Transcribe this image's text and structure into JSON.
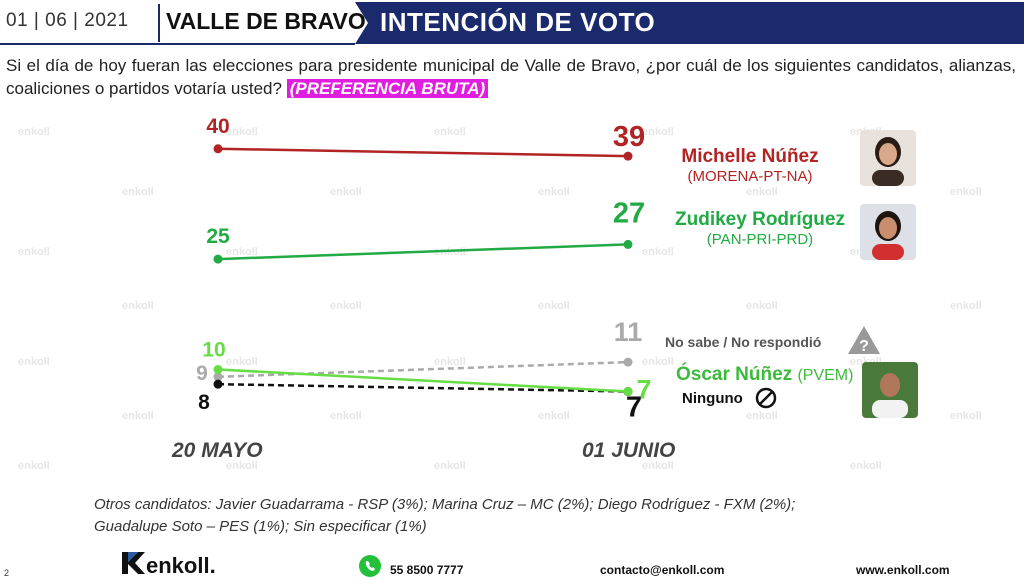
{
  "header": {
    "date": "01 | 06 | 2021",
    "place": "VALLE DE BRAVO",
    "title": "INTENCIÓN DE VOTO",
    "bar_color": "#1a2a6c"
  },
  "question": {
    "text": "Si el día de hoy fueran las elecciones para presidente municipal de Valle de Bravo, ¿por cuál de los siguientes candidatos, alianzas, coaliciones o partidos votaría usted?",
    "tag": "(PREFERENCIA BRUTA)"
  },
  "chart_data": {
    "type": "line",
    "categories": [
      "20 MAYO",
      "01 JUNIO"
    ],
    "series": [
      {
        "name": "Michelle Núñez",
        "party": "(MORENA-PT-NA)",
        "values": [
          40,
          39
        ],
        "color": "#b22424",
        "dashed": false
      },
      {
        "name": "Zudikey Rodríguez",
        "party": "(PAN-PRI-PRD)",
        "values": [
          25,
          27
        ],
        "color": "#22aa44",
        "dashed": false
      },
      {
        "name": "Óscar Núñez",
        "party": "(PVEM)",
        "values": [
          10,
          7
        ],
        "color": "#66dd44",
        "dashed": false
      },
      {
        "name": "No sabe / No respondió",
        "values": [
          9,
          11
        ],
        "color": "#aaaaaa",
        "dashed": true
      },
      {
        "name": "Ninguno",
        "values": [
          8,
          7
        ],
        "color": "#111111",
        "dashed": true
      }
    ],
    "ylim": [
      0,
      45
    ],
    "grid": false
  },
  "labels": {
    "nosabe": "No sabe / No respondió",
    "ninguno": "Ninguno"
  },
  "others": "Otros candidatos: Javier Guadarrama -  RSP (3%); Marina Cruz – MC (2%); Diego Rodríguez - FXM (2%); Guadalupe Soto – PES (1%); Sin especificar (1%)",
  "footer": {
    "page": "2",
    "logo": "enkoll.",
    "phone": "55 8500 7777",
    "email": "contacto@enkoll.com",
    "web": "www.enkoll.com"
  },
  "watermark": "enkoll"
}
